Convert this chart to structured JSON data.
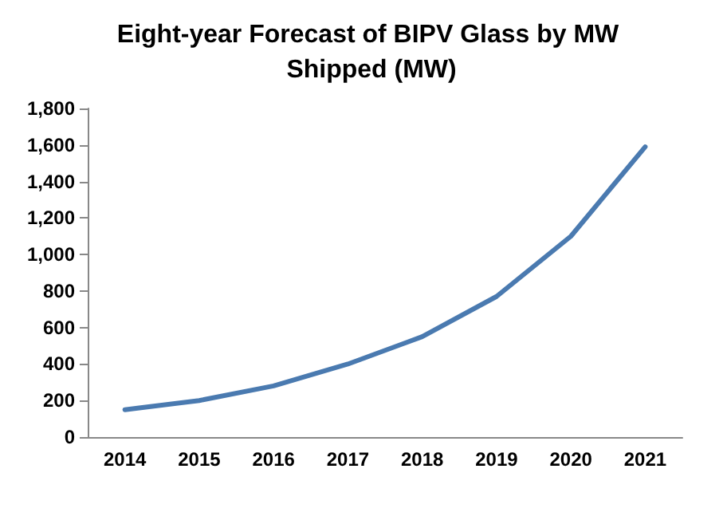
{
  "chart_data": {
    "type": "line",
    "title": "Eight-year Forecast of BIPV Glass by MW Shipped (MW)",
    "categories": [
      "2014",
      "2015",
      "2016",
      "2017",
      "2018",
      "2019",
      "2020",
      "2021"
    ],
    "series": [
      {
        "color": "#4a7ab0",
        "values": [
          150,
          200,
          280,
          400,
          550,
          770,
          1100,
          1590
        ]
      }
    ],
    "ylim": [
      0,
      1800
    ],
    "yticks": [
      0,
      200,
      400,
      600,
      800,
      {
        "value": 1000,
        "label": "1,000"
      },
      {
        "value": 1200,
        "label": "1,200"
      },
      {
        "value": 1400,
        "label": "1,400"
      },
      {
        "value": 1600,
        "label": "1,600"
      },
      {
        "value": 1800,
        "label": "1,800"
      }
    ],
    "grid": false,
    "marker": "none"
  }
}
